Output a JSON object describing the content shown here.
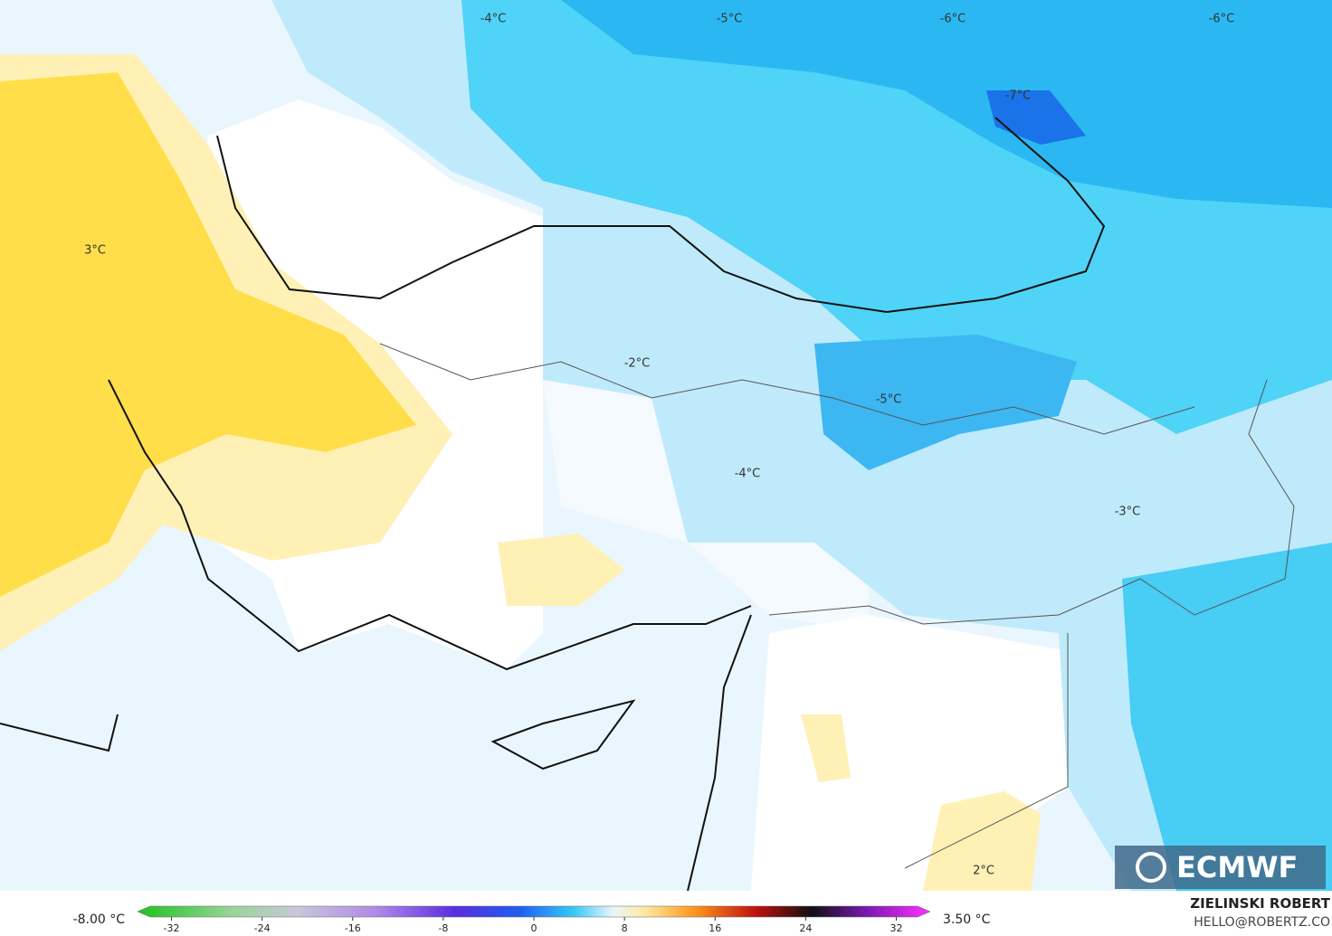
{
  "map": {
    "labels": [
      "-4°C",
      "-5°C",
      "-6°C",
      "-6°C",
      "-7°C",
      "3°C",
      "-2°C",
      "-5°C",
      "-4°C",
      "-3°C",
      "2°C"
    ],
    "logo": "ECMWF",
    "author": "ZIELINSKI ROBERT",
    "contact": "HELLO@ROBERTZ.CO"
  },
  "colorbar": {
    "min_label": "-8.00 °C",
    "max_label": "3.50 °C",
    "lim": [
      -35,
      35
    ],
    "ticks": [
      -32,
      -24,
      -16,
      -8,
      0,
      8,
      16,
      24,
      32
    ]
  }
}
